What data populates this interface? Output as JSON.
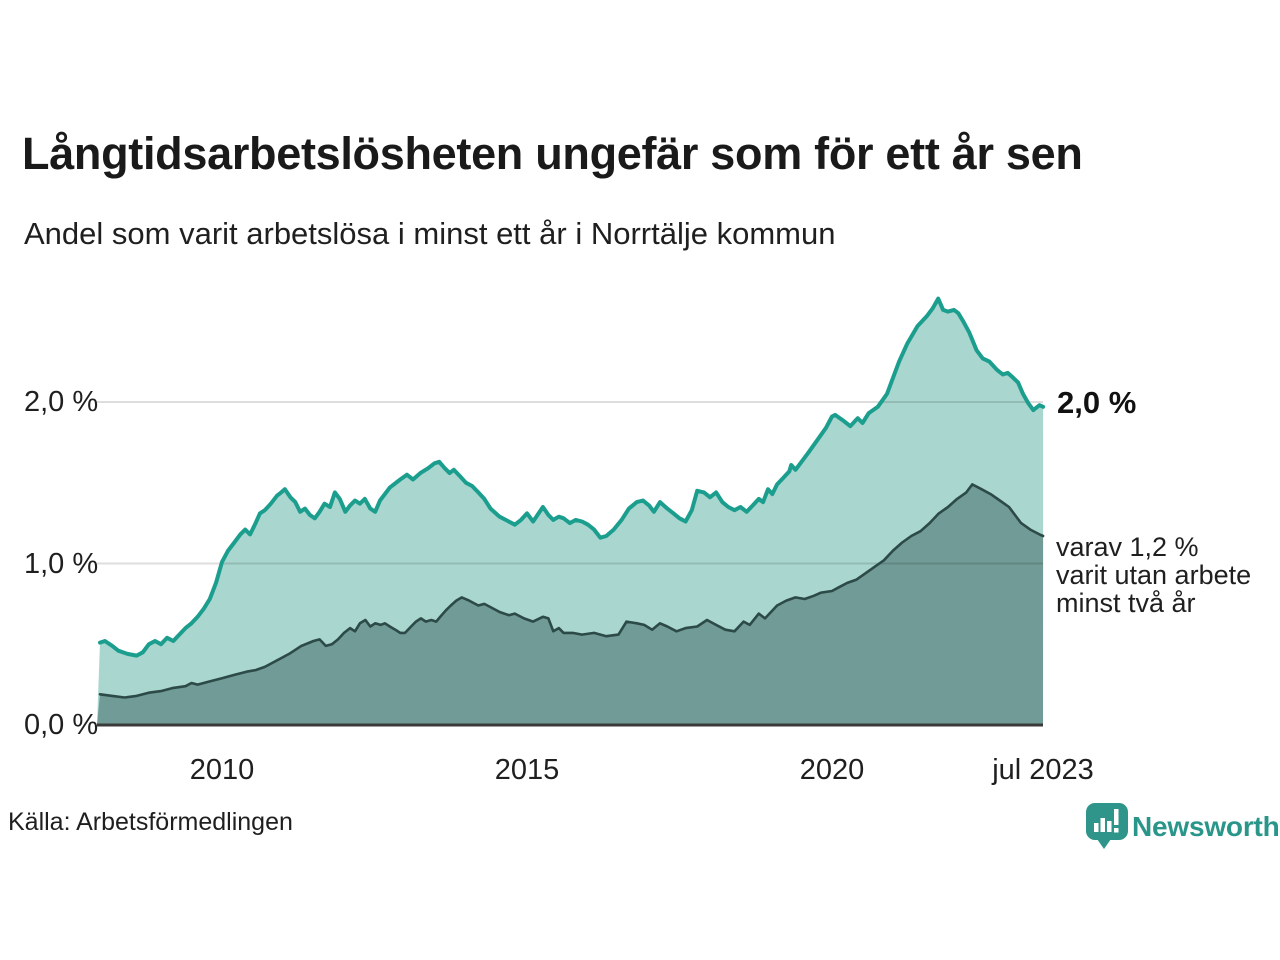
{
  "header": {
    "title": "Långtidsarbetslösheten ungefär som för ett år sen",
    "subtitle": "Andel som varit arbetslösa i minst ett år i Norrtälje kommun"
  },
  "footer": {
    "source_label": "Källa: Arbetsförmedlingen",
    "logo_text": "Newsworthy",
    "logo_color": "#2f958a"
  },
  "colors": {
    "background": "#ffffff",
    "title_text": "#1a1a1a",
    "body_text": "#1f1f1f",
    "gridline": "#dcdcdc",
    "axis_baseline": "#3a3a3a",
    "accent_teal": "#1b9e8e"
  },
  "chart_data": {
    "type": "area",
    "title": "Långtidsarbetslösheten ungefär som för ett år sen",
    "subtitle": "Andel som varit arbetslösa i minst ett år i Norrtälje kommun",
    "unit": "%",
    "grid": "horizontal",
    "x_axis": {
      "range": [
        2007.95,
        2023.5
      ],
      "ticks": [
        {
          "year": 2010,
          "label": "2010"
        },
        {
          "year": 2015,
          "label": "2015"
        },
        {
          "year": 2020,
          "label": "2020"
        },
        {
          "year": 2023.5,
          "label": "jul 2023"
        }
      ]
    },
    "y_axis": {
      "range": [
        0,
        2.7
      ],
      "ticks": [
        {
          "value": 0,
          "label": "0,0 %"
        },
        {
          "value": 1,
          "label": "1,0 %"
        },
        {
          "value": 2,
          "label": "2,0 %"
        }
      ]
    },
    "annotations": {
      "end_label": "2,0 %",
      "note_lines": [
        "varav 1,2 %",
        "varit utan arbete",
        "minst två år"
      ]
    },
    "series": [
      {
        "id": "arbetslosa-minst-ett-ar",
        "last_value_label": "2,0 %",
        "line_color": "#1b9e8e",
        "fill_color": "#a9d6cf",
        "stroke_width": 4,
        "points": [
          [
            2008.0,
            0.51
          ],
          [
            2008.08,
            0.52
          ],
          [
            2008.2,
            0.49
          ],
          [
            2008.3,
            0.46
          ],
          [
            2008.45,
            0.44
          ],
          [
            2008.6,
            0.43
          ],
          [
            2008.7,
            0.45
          ],
          [
            2008.8,
            0.5
          ],
          [
            2008.9,
            0.52
          ],
          [
            2009.0,
            0.5
          ],
          [
            2009.1,
            0.54
          ],
          [
            2009.2,
            0.52
          ],
          [
            2009.3,
            0.56
          ],
          [
            2009.4,
            0.6
          ],
          [
            2009.5,
            0.63
          ],
          [
            2009.6,
            0.67
          ],
          [
            2009.7,
            0.72
          ],
          [
            2009.8,
            0.78
          ],
          [
            2009.9,
            0.88
          ],
          [
            2010.0,
            1.01
          ],
          [
            2010.1,
            1.08
          ],
          [
            2010.2,
            1.13
          ],
          [
            2010.3,
            1.18
          ],
          [
            2010.38,
            1.21
          ],
          [
            2010.46,
            1.18
          ],
          [
            2010.55,
            1.25
          ],
          [
            2010.62,
            1.31
          ],
          [
            2010.7,
            1.33
          ],
          [
            2010.8,
            1.37
          ],
          [
            2010.9,
            1.42
          ],
          [
            2010.97,
            1.44
          ],
          [
            2011.03,
            1.46
          ],
          [
            2011.12,
            1.41
          ],
          [
            2011.2,
            1.38
          ],
          [
            2011.28,
            1.32
          ],
          [
            2011.36,
            1.34
          ],
          [
            2011.44,
            1.3
          ],
          [
            2011.52,
            1.28
          ],
          [
            2011.6,
            1.32
          ],
          [
            2011.68,
            1.37
          ],
          [
            2011.77,
            1.35
          ],
          [
            2011.85,
            1.44
          ],
          [
            2011.93,
            1.4
          ],
          [
            2012.02,
            1.32
          ],
          [
            2012.1,
            1.36
          ],
          [
            2012.18,
            1.39
          ],
          [
            2012.26,
            1.37
          ],
          [
            2012.34,
            1.4
          ],
          [
            2012.43,
            1.34
          ],
          [
            2012.51,
            1.32
          ],
          [
            2012.59,
            1.39
          ],
          [
            2012.75,
            1.47
          ],
          [
            2012.92,
            1.52
          ],
          [
            2013.03,
            1.55
          ],
          [
            2013.13,
            1.52
          ],
          [
            2013.25,
            1.56
          ],
          [
            2013.38,
            1.59
          ],
          [
            2013.48,
            1.62
          ],
          [
            2013.56,
            1.63
          ],
          [
            2013.65,
            1.59
          ],
          [
            2013.73,
            1.56
          ],
          [
            2013.8,
            1.58
          ],
          [
            2013.9,
            1.54
          ],
          [
            2014.0,
            1.5
          ],
          [
            2014.1,
            1.48
          ],
          [
            2014.2,
            1.44
          ],
          [
            2014.3,
            1.4
          ],
          [
            2014.4,
            1.34
          ],
          [
            2014.55,
            1.29
          ],
          [
            2014.7,
            1.26
          ],
          [
            2014.8,
            1.24
          ],
          [
            2014.9,
            1.27
          ],
          [
            2015.0,
            1.31
          ],
          [
            2015.1,
            1.26
          ],
          [
            2015.26,
            1.35
          ],
          [
            2015.35,
            1.3
          ],
          [
            2015.43,
            1.27
          ],
          [
            2015.52,
            1.29
          ],
          [
            2015.6,
            1.28
          ],
          [
            2015.7,
            1.25
          ],
          [
            2015.8,
            1.27
          ],
          [
            2015.9,
            1.26
          ],
          [
            2016.0,
            1.24
          ],
          [
            2016.1,
            1.21
          ],
          [
            2016.2,
            1.16
          ],
          [
            2016.3,
            1.17
          ],
          [
            2016.42,
            1.21
          ],
          [
            2016.55,
            1.27
          ],
          [
            2016.67,
            1.34
          ],
          [
            2016.8,
            1.38
          ],
          [
            2016.9,
            1.39
          ],
          [
            2017.0,
            1.36
          ],
          [
            2017.08,
            1.32
          ],
          [
            2017.18,
            1.38
          ],
          [
            2017.3,
            1.34
          ],
          [
            2017.4,
            1.31
          ],
          [
            2017.5,
            1.28
          ],
          [
            2017.6,
            1.26
          ],
          [
            2017.7,
            1.33
          ],
          [
            2017.79,
            1.45
          ],
          [
            2017.9,
            1.44
          ],
          [
            2018.0,
            1.41
          ],
          [
            2018.1,
            1.44
          ],
          [
            2018.2,
            1.38
          ],
          [
            2018.3,
            1.35
          ],
          [
            2018.4,
            1.33
          ],
          [
            2018.5,
            1.35
          ],
          [
            2018.6,
            1.32
          ],
          [
            2018.7,
            1.36
          ],
          [
            2018.8,
            1.4
          ],
          [
            2018.87,
            1.38
          ],
          [
            2018.95,
            1.46
          ],
          [
            2019.02,
            1.43
          ],
          [
            2019.1,
            1.49
          ],
          [
            2019.2,
            1.53
          ],
          [
            2019.3,
            1.57
          ],
          [
            2019.33,
            1.61
          ],
          [
            2019.4,
            1.58
          ],
          [
            2019.5,
            1.63
          ],
          [
            2019.6,
            1.68
          ],
          [
            2019.75,
            1.76
          ],
          [
            2019.9,
            1.84
          ],
          [
            2020.0,
            1.91
          ],
          [
            2020.05,
            1.92
          ],
          [
            2020.2,
            1.88
          ],
          [
            2020.3,
            1.85
          ],
          [
            2020.42,
            1.9
          ],
          [
            2020.5,
            1.87
          ],
          [
            2020.6,
            1.93
          ],
          [
            2020.75,
            1.97
          ],
          [
            2020.9,
            2.05
          ],
          [
            2021.0,
            2.15
          ],
          [
            2021.1,
            2.25
          ],
          [
            2021.23,
            2.36
          ],
          [
            2021.4,
            2.47
          ],
          [
            2021.55,
            2.53
          ],
          [
            2021.65,
            2.58
          ],
          [
            2021.74,
            2.64
          ],
          [
            2021.82,
            2.57
          ],
          [
            2021.9,
            2.56
          ],
          [
            2022.0,
            2.57
          ],
          [
            2022.07,
            2.55
          ],
          [
            2022.15,
            2.5
          ],
          [
            2022.25,
            2.43
          ],
          [
            2022.37,
            2.32
          ],
          [
            2022.47,
            2.27
          ],
          [
            2022.58,
            2.25
          ],
          [
            2022.7,
            2.2
          ],
          [
            2022.8,
            2.17
          ],
          [
            2022.88,
            2.18
          ],
          [
            2022.97,
            2.15
          ],
          [
            2023.05,
            2.12
          ],
          [
            2023.13,
            2.05
          ],
          [
            2023.22,
            1.99
          ],
          [
            2023.3,
            1.95
          ],
          [
            2023.4,
            1.98
          ],
          [
            2023.46,
            1.97
          ]
        ]
      },
      {
        "id": "utan-arbete-minst-tva-ar",
        "last_value_label": "1,2 %",
        "line_color": "#2c4a48",
        "fill_color": "#719b96",
        "stroke_width": 2.6,
        "points": [
          [
            2008.0,
            0.19
          ],
          [
            2008.2,
            0.18
          ],
          [
            2008.4,
            0.17
          ],
          [
            2008.6,
            0.18
          ],
          [
            2008.8,
            0.2
          ],
          [
            2009.0,
            0.21
          ],
          [
            2009.2,
            0.23
          ],
          [
            2009.4,
            0.24
          ],
          [
            2009.5,
            0.26
          ],
          [
            2009.6,
            0.25
          ],
          [
            2009.8,
            0.27
          ],
          [
            2010.0,
            0.29
          ],
          [
            2010.2,
            0.31
          ],
          [
            2010.4,
            0.33
          ],
          [
            2010.55,
            0.34
          ],
          [
            2010.7,
            0.36
          ],
          [
            2010.9,
            0.4
          ],
          [
            2011.1,
            0.44
          ],
          [
            2011.3,
            0.49
          ],
          [
            2011.5,
            0.52
          ],
          [
            2011.6,
            0.53
          ],
          [
            2011.7,
            0.49
          ],
          [
            2011.8,
            0.5
          ],
          [
            2011.9,
            0.53
          ],
          [
            2012.0,
            0.57
          ],
          [
            2012.1,
            0.6
          ],
          [
            2012.18,
            0.58
          ],
          [
            2012.26,
            0.63
          ],
          [
            2012.35,
            0.65
          ],
          [
            2012.43,
            0.61
          ],
          [
            2012.51,
            0.63
          ],
          [
            2012.6,
            0.62
          ],
          [
            2012.67,
            0.63
          ],
          [
            2012.75,
            0.61
          ],
          [
            2012.84,
            0.59
          ],
          [
            2012.92,
            0.57
          ],
          [
            2013.0,
            0.57
          ],
          [
            2013.1,
            0.61
          ],
          [
            2013.18,
            0.64
          ],
          [
            2013.26,
            0.66
          ],
          [
            2013.34,
            0.64
          ],
          [
            2013.43,
            0.65
          ],
          [
            2013.51,
            0.64
          ],
          [
            2013.6,
            0.68
          ],
          [
            2013.67,
            0.71
          ],
          [
            2013.75,
            0.74
          ],
          [
            2013.84,
            0.77
          ],
          [
            2013.93,
            0.79
          ],
          [
            2014.05,
            0.77
          ],
          [
            2014.2,
            0.74
          ],
          [
            2014.3,
            0.75
          ],
          [
            2014.4,
            0.73
          ],
          [
            2014.55,
            0.7
          ],
          [
            2014.7,
            0.68
          ],
          [
            2014.8,
            0.69
          ],
          [
            2014.95,
            0.66
          ],
          [
            2015.1,
            0.64
          ],
          [
            2015.26,
            0.67
          ],
          [
            2015.35,
            0.66
          ],
          [
            2015.43,
            0.58
          ],
          [
            2015.52,
            0.6
          ],
          [
            2015.6,
            0.57
          ],
          [
            2015.75,
            0.57
          ],
          [
            2015.9,
            0.56
          ],
          [
            2016.1,
            0.57
          ],
          [
            2016.3,
            0.55
          ],
          [
            2016.5,
            0.56
          ],
          [
            2016.63,
            0.64
          ],
          [
            2016.8,
            0.63
          ],
          [
            2016.92,
            0.62
          ],
          [
            2017.05,
            0.59
          ],
          [
            2017.18,
            0.63
          ],
          [
            2017.3,
            0.61
          ],
          [
            2017.45,
            0.58
          ],
          [
            2017.6,
            0.6
          ],
          [
            2017.79,
            0.61
          ],
          [
            2017.95,
            0.65
          ],
          [
            2018.1,
            0.62
          ],
          [
            2018.25,
            0.59
          ],
          [
            2018.4,
            0.58
          ],
          [
            2018.55,
            0.64
          ],
          [
            2018.65,
            0.62
          ],
          [
            2018.8,
            0.69
          ],
          [
            2018.9,
            0.66
          ],
          [
            2019.1,
            0.74
          ],
          [
            2019.25,
            0.77
          ],
          [
            2019.4,
            0.79
          ],
          [
            2019.55,
            0.78
          ],
          [
            2019.7,
            0.8
          ],
          [
            2019.82,
            0.82
          ],
          [
            2020.0,
            0.83
          ],
          [
            2020.1,
            0.85
          ],
          [
            2020.25,
            0.88
          ],
          [
            2020.4,
            0.9
          ],
          [
            2020.55,
            0.94
          ],
          [
            2020.7,
            0.98
          ],
          [
            2020.85,
            1.02
          ],
          [
            2021.0,
            1.08
          ],
          [
            2021.15,
            1.13
          ],
          [
            2021.3,
            1.17
          ],
          [
            2021.45,
            1.2
          ],
          [
            2021.6,
            1.25
          ],
          [
            2021.75,
            1.31
          ],
          [
            2021.9,
            1.35
          ],
          [
            2022.05,
            1.4
          ],
          [
            2022.2,
            1.44
          ],
          [
            2022.3,
            1.49
          ],
          [
            2022.45,
            1.46
          ],
          [
            2022.6,
            1.43
          ],
          [
            2022.75,
            1.39
          ],
          [
            2022.9,
            1.35
          ],
          [
            2023.0,
            1.3
          ],
          [
            2023.1,
            1.25
          ],
          [
            2023.25,
            1.21
          ],
          [
            2023.4,
            1.18
          ],
          [
            2023.46,
            1.17
          ]
        ]
      }
    ]
  }
}
